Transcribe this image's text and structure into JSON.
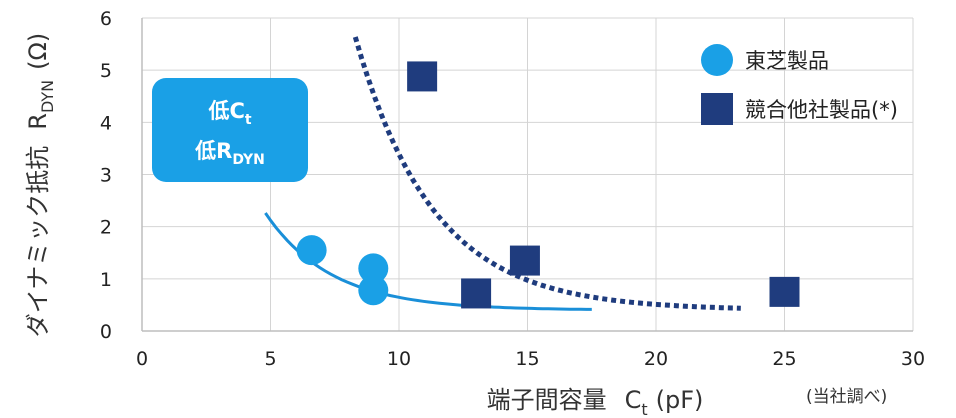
{
  "chart_data": {
    "type": "scatter",
    "title": "",
    "xlabel": "端子間容量",
    "xlabel_symbol": "C",
    "xlabel_sub": "t",
    "xlabel_unit": "(pF)",
    "ylabel": "ダイナミック抵抗",
    "ylabel_symbol": "R",
    "ylabel_sub": "DYN",
    "ylabel_unit": "(Ω)",
    "xlim": [
      0,
      30
    ],
    "ylim": [
      0,
      6
    ],
    "x_ticks": [
      "0",
      "5",
      "10",
      "15",
      "20",
      "25",
      "30"
    ],
    "y_ticks": [
      "0",
      "1",
      "2",
      "3",
      "4",
      "5",
      "6"
    ],
    "grid": true,
    "legend_position": "top-right",
    "note": "(当社調べ)",
    "callout": {
      "line1_prefix": "低",
      "line1_symbol": "C",
      "line1_sub": "t",
      "line2_prefix": "低",
      "line2_symbol": "R",
      "line2_sub": "DYN"
    },
    "series": [
      {
        "name": "東芝製品",
        "marker": "circle",
        "color": "#1aa0e6",
        "points": [
          [
            6.6,
            1.55
          ],
          [
            9.0,
            1.2
          ],
          [
            9.0,
            0.78
          ]
        ],
        "trend": {
          "style": "solid",
          "color": "#1a8fd8",
          "x": [
            4.8,
            17.5
          ],
          "a": 12.1,
          "b": 0.39,
          "c": 0.4
        }
      },
      {
        "name": "競合他社製品(*)",
        "marker": "square",
        "color": "#1f3c7e",
        "points": [
          [
            10.9,
            4.88
          ],
          [
            13.0,
            0.72
          ],
          [
            14.9,
            1.35
          ],
          [
            25.0,
            0.75
          ]
        ],
        "trend": {
          "style": "dotted",
          "color": "#1f3c7e",
          "x": [
            8.3,
            23.3
          ],
          "a": 81.0,
          "b": 0.33,
          "c": 0.4
        }
      }
    ]
  }
}
